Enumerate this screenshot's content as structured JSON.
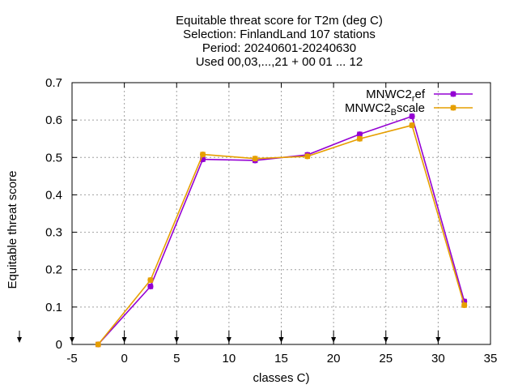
{
  "chart_data": {
    "type": "line",
    "title_lines": [
      "Equitable threat score  for T2m (deg C)",
      "Selection: FinlandLand    107 stations",
      "Period: 20240601-20240630",
      "Used 00,03,...,21 + 00 01 ... 12"
    ],
    "xlabel": "classes C)",
    "ylabel": "Equitable threat score",
    "xlim": [
      -5,
      35
    ],
    "ylim": [
      0,
      0.7
    ],
    "xticks": [
      -5,
      0,
      5,
      10,
      15,
      20,
      25,
      30,
      35
    ],
    "xtick_labels": [
      "-5",
      "0",
      "5",
      "10",
      "15",
      "20",
      "25",
      "30",
      "35"
    ],
    "yticks": [
      0,
      0.1,
      0.2,
      0.3,
      0.4,
      0.5,
      0.6,
      0.7
    ],
    "ytick_labels": [
      "0",
      "0.1",
      "0.2",
      "0.3",
      "0.4",
      "0.5",
      "0.6",
      "0.7"
    ],
    "grid": true,
    "legend_position": "top-right",
    "x": [
      -2.5,
      2.5,
      7.5,
      12.5,
      17.5,
      22.5,
      27.5,
      32.5
    ],
    "series": [
      {
        "name": "MNWC2_ref",
        "legend_main": "MNWC2",
        "legend_sub": "r",
        "legend_rest": "ef",
        "color": "#9400d3",
        "values": [
          0.0,
          0.155,
          0.495,
          0.492,
          0.507,
          0.562,
          0.61,
          0.115
        ]
      },
      {
        "name": "MNWC2_Bscale",
        "legend_main": "MNWC2",
        "legend_sub": "B",
        "legend_rest": "scale",
        "color": "#e69f00",
        "values": [
          0.0,
          0.172,
          0.508,
          0.497,
          0.503,
          0.55,
          0.586,
          0.105
        ]
      }
    ],
    "marker_arrows_x": [
      -5,
      0,
      5,
      10,
      15,
      20,
      25,
      30
    ]
  }
}
